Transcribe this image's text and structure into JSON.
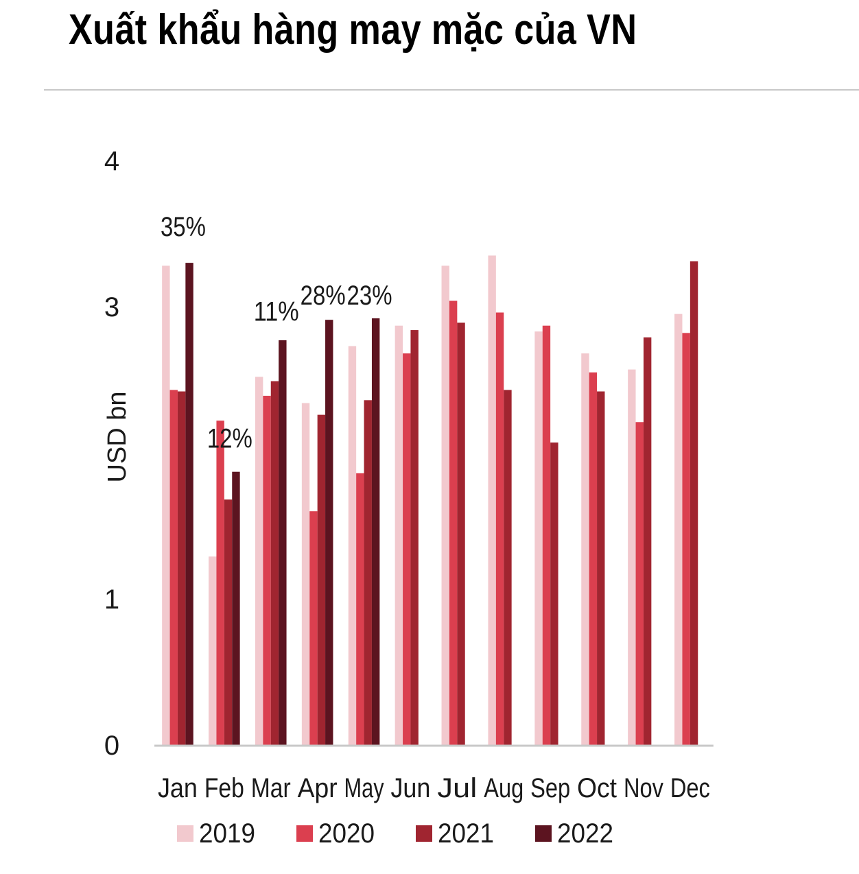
{
  "title": "Xuất khẩu hàng may mặc của VN",
  "colors": {
    "2019": "#f2c9ce",
    "2020": "#db3f4f",
    "2021": "#a02530",
    "2022": "#5c1420",
    "axis": "#c8c8c8"
  },
  "chart_data": {
    "type": "bar",
    "title": "Xuất khẩu hàng may mặc của VN",
    "xlabel": "",
    "ylabel": "USD bn",
    "ylim": [
      0,
      4
    ],
    "yticks": [
      "0",
      "1",
      "3",
      "4"
    ],
    "yticks_values": [
      0,
      1,
      3,
      4
    ],
    "categories": [
      "Jan",
      "Feb",
      "Mar",
      "Apr",
      "May",
      "Jun",
      "Jul",
      "Aug",
      "Sep",
      "Oct",
      "Nov",
      "Dec"
    ],
    "series": [
      {
        "name": "2019",
        "values": [
          3.28,
          1.29,
          2.52,
          2.34,
          2.73,
          2.87,
          3.28,
          3.35,
          2.83,
          2.68,
          2.57,
          2.95
        ]
      },
      {
        "name": "2020",
        "values": [
          2.43,
          2.22,
          2.39,
          1.6,
          1.86,
          2.68,
          3.04,
          2.96,
          2.87,
          2.55,
          2.21,
          2.82
        ]
      },
      {
        "name": "2021",
        "values": [
          2.42,
          1.68,
          2.49,
          2.26,
          2.36,
          2.84,
          2.89,
          2.43,
          2.07,
          2.42,
          2.79,
          3.31
        ]
      },
      {
        "name": "2022",
        "values": [
          3.3,
          1.87,
          2.77,
          2.91,
          2.92,
          null,
          null,
          null,
          null,
          null,
          null,
          null
        ]
      }
    ],
    "annotations": [
      {
        "category": "Jan",
        "text": "35%",
        "y": 3.55
      },
      {
        "category": "Feb",
        "text": "12%",
        "y": 2.1
      },
      {
        "category": "Mar",
        "text": "11%",
        "y": 2.97
      },
      {
        "category": "Apr",
        "text": "28%",
        "y": 3.08
      },
      {
        "category": "May",
        "text": "23%",
        "y": 3.08
      }
    ],
    "legend": {
      "position": "bottom",
      "items": [
        "2019",
        "2020",
        "2021",
        "2022"
      ]
    },
    "grid": false
  }
}
